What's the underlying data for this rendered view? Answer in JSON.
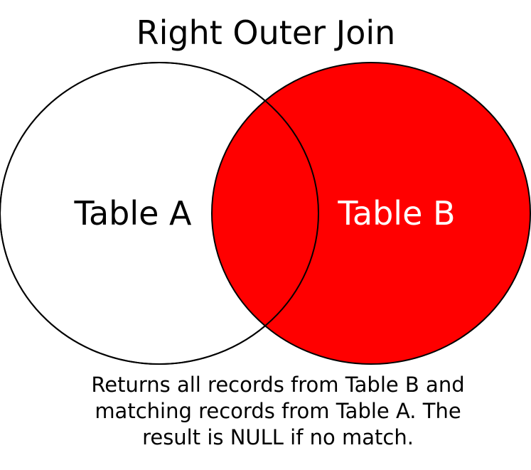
{
  "title": "Right Outer Join",
  "sets": {
    "left": {
      "label": "Table A",
      "fill": "#ffffff",
      "label_color": "#000000"
    },
    "right": {
      "label": "Table B",
      "fill": "#ff0000",
      "label_color": "#ffffff"
    }
  },
  "outline_color": "#000000",
  "caption": {
    "line1": "Returns all records from Table B and",
    "line2": "matching records from Table A. The",
    "line3": "result is NULL if no match."
  }
}
